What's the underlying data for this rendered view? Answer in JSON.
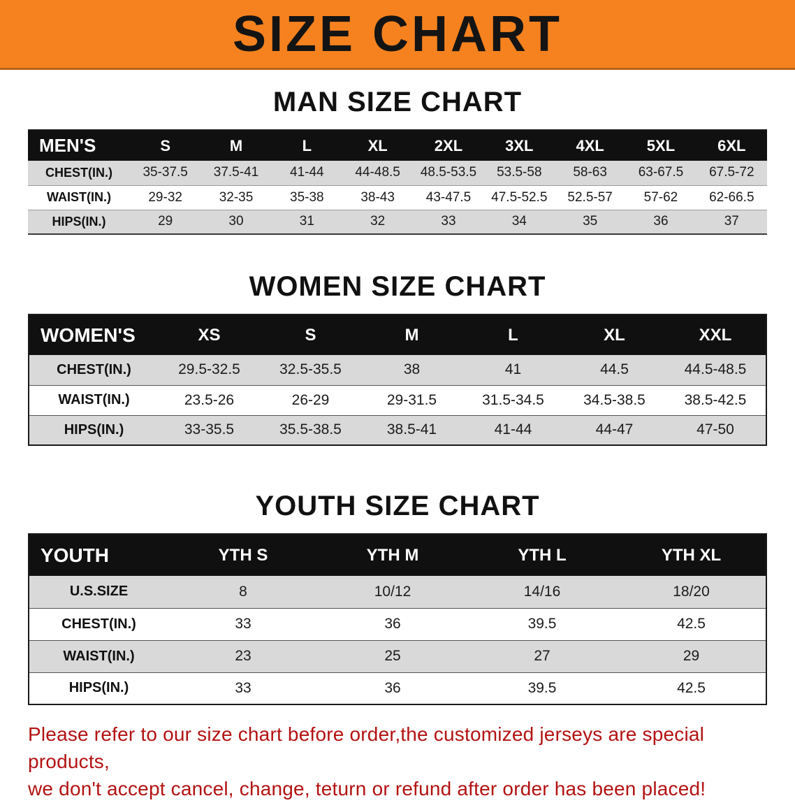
{
  "banner": {
    "title": "SIZE CHART"
  },
  "sections": [
    {
      "heading": "MAN SIZE CHART",
      "corner_label": "MEN'S",
      "columns": [
        "S",
        "M",
        "L",
        "XL",
        "2XL",
        "3XL",
        "4XL",
        "5XL",
        "6XL"
      ],
      "rows": [
        {
          "label": "CHEST(IN.)",
          "values": [
            "35-37.5",
            "37.5-41",
            "41-44",
            "44-48.5",
            "48.5-53.5",
            "53.5-58",
            "58-63",
            "63-67.5",
            "67.5-72"
          ]
        },
        {
          "label": "WAIST(IN.)",
          "values": [
            "29-32",
            "32-35",
            "35-38",
            "38-43",
            "43-47.5",
            "47.5-52.5",
            "52.5-57",
            "57-62",
            "62-66.5"
          ]
        },
        {
          "label": "HIPS(IN.)",
          "values": [
            "29",
            "30",
            "31",
            "32",
            "33",
            "34",
            "35",
            "36",
            "37"
          ]
        }
      ]
    },
    {
      "heading": "WOMEN SIZE CHART",
      "corner_label": "WOMEN'S",
      "columns": [
        "XS",
        "S",
        "M",
        "L",
        "XL",
        "XXL"
      ],
      "rows": [
        {
          "label": "CHEST(IN.)",
          "values": [
            "29.5-32.5",
            "32.5-35.5",
            "38",
            "41",
            "44.5",
            "44.5-48.5"
          ]
        },
        {
          "label": "WAIST(IN.)",
          "values": [
            "23.5-26",
            "26-29",
            "29-31.5",
            "31.5-34.5",
            "34.5-38.5",
            "38.5-42.5"
          ]
        },
        {
          "label": "HIPS(IN.)",
          "values": [
            "33-35.5",
            "35.5-38.5",
            "38.5-41",
            "41-44",
            "44-47",
            "47-50"
          ]
        }
      ]
    },
    {
      "heading": "YOUTH SIZE CHART",
      "corner_label": "YOUTH",
      "columns": [
        "YTH S",
        "YTH M",
        "YTH L",
        "YTH XL"
      ],
      "rows": [
        {
          "label": "U.S.SIZE",
          "values": [
            "8",
            "10/12",
            "14/16",
            "18/20"
          ]
        },
        {
          "label": "CHEST(IN.)",
          "values": [
            "33",
            "36",
            "39.5",
            "42.5"
          ]
        },
        {
          "label": "WAIST(IN.)",
          "values": [
            "23",
            "25",
            "27",
            "29"
          ]
        },
        {
          "label": "HIPS(IN.)",
          "values": [
            "33",
            "36",
            "39.5",
            "42.5"
          ]
        }
      ]
    }
  ],
  "disclaimer": {
    "line1": "Please refer to our size chart before order,the customized jerseys are special products,",
    "line2": "we don't accept cancel, change, teturn or refund after order has been placed!"
  },
  "colors": {
    "banner_orange": "#f5821f",
    "table_header_black": "#101010",
    "stripe_gray": "#d9d9d9",
    "disclaimer_red": "#b31212"
  }
}
